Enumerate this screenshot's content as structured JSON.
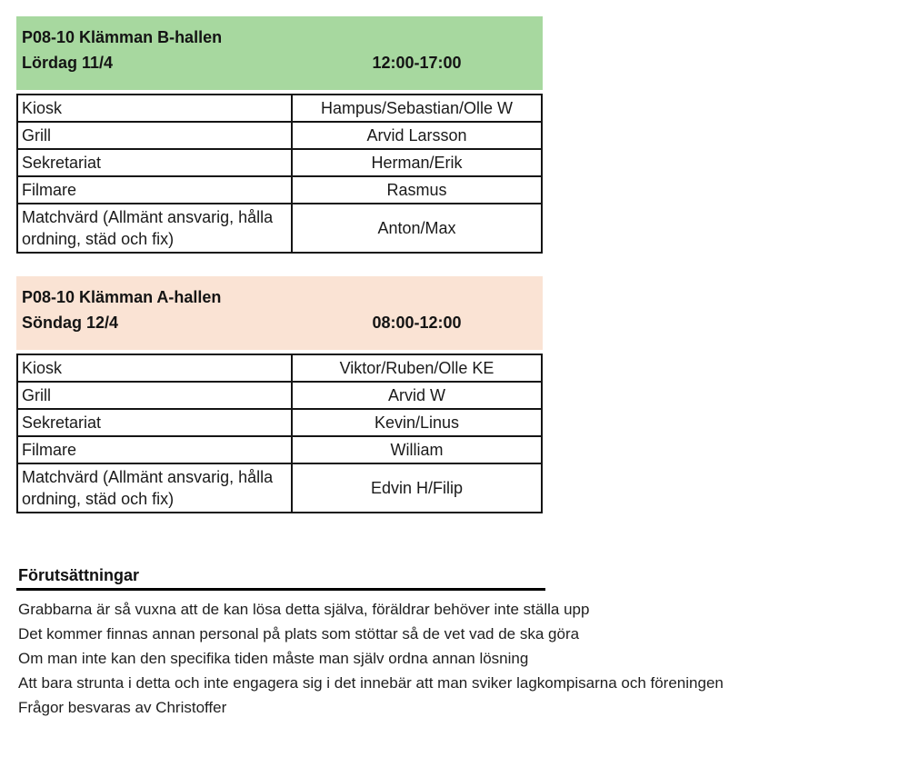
{
  "colors": {
    "b_hallen_header_bg": "#a7d89f",
    "a_hallen_header_bg": "#fae3d4",
    "table_border": "#141414",
    "text": "#1a1a1a",
    "page_bg": "#ffffff"
  },
  "sections": [
    {
      "header": {
        "title": "P08-10 Klämman B-hallen",
        "date": "Lördag 11/4",
        "time": "12:00-17:00"
      },
      "rows": [
        {
          "role": "Kiosk",
          "assigned": "Hampus/Sebastian/Olle W"
        },
        {
          "role": "Grill",
          "assigned": "Arvid Larsson"
        },
        {
          "role": "Sekretariat",
          "assigned": "Herman/Erik"
        },
        {
          "role": "Filmare",
          "assigned": "Rasmus"
        },
        {
          "role": "Matchvärd (Allmänt ansvarig, hålla ordning, städ och fix)",
          "assigned": "Anton/Max"
        }
      ]
    },
    {
      "header": {
        "title": "P08-10 Klämman A-hallen",
        "date": "Söndag 12/4",
        "time": "08:00-12:00"
      },
      "rows": [
        {
          "role": "Kiosk",
          "assigned": "Viktor/Ruben/Olle KE"
        },
        {
          "role": "Grill",
          "assigned": "Arvid W"
        },
        {
          "role": "Sekretariat",
          "assigned": "Kevin/Linus"
        },
        {
          "role": "Filmare",
          "assigned": "William"
        },
        {
          "role": "Matchvärd (Allmänt ansvarig, hålla ordning, städ och fix)",
          "assigned": "Edvin H/Filip"
        }
      ]
    }
  ],
  "notes": {
    "heading": "Förutsättningar",
    "lines": [
      "Grabbarna är så vuxna att de kan lösa detta själva, föräldrar behöver inte ställa upp",
      "Det kommer finnas annan personal på plats som stöttar så de vet vad de ska göra",
      "Om man inte kan den specifika tiden måste man själv ordna annan lösning",
      "Att bara strunta i detta och inte engagera sig i det innebär att man sviker lagkompisarna och föreningen",
      "Frågor besvaras av Christoffer"
    ]
  }
}
